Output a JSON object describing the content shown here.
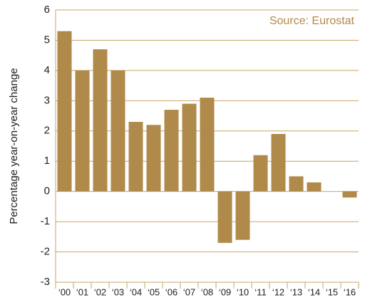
{
  "chart_data": {
    "type": "bar",
    "ylabel": "Percentage year-on-year change",
    "annotation": "Source: Eurostat",
    "categories": [
      "‘00",
      "‘01",
      "‘02",
      "‘03",
      "‘04",
      "‘05",
      "‘06",
      "‘07",
      "‘08",
      "‘09",
      "‘10",
      "‘11",
      "‘12",
      "‘13",
      "‘14",
      "‘15",
      "‘16"
    ],
    "values": [
      5.3,
      4.0,
      4.7,
      4.0,
      2.3,
      2.2,
      2.7,
      2.9,
      3.1,
      -1.7,
      -1.6,
      1.2,
      1.9,
      0.5,
      0.3,
      0.0,
      -0.2
    ],
    "color": "#b08a4a",
    "ylim": [
      -3,
      6
    ],
    "yticks": [
      -3,
      -2,
      -1,
      0,
      1,
      2,
      3,
      4,
      5,
      6
    ],
    "grid": true
  }
}
